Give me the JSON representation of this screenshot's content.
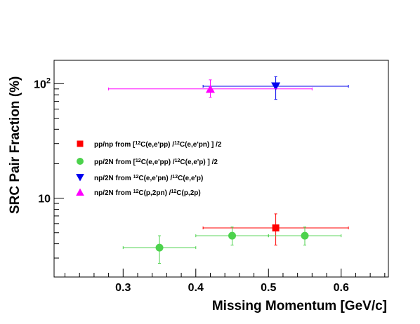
{
  "chart_data": {
    "type": "scatter",
    "xlabel": "Missing Momentum [GeV/c]",
    "ylabel": "SRC Pair Fraction (%)",
    "xlim": [
      0.205,
      0.665
    ],
    "ylim": [
      2.05,
      160
    ],
    "y_scale": "log",
    "grid": false,
    "x_ticks": [
      0.3,
      0.4,
      0.5,
      0.6
    ],
    "x_tick_labels": [
      "0.3",
      "0.4",
      "0.5",
      "0.6"
    ],
    "y_ticks": [
      10,
      100
    ],
    "y_tick_labels": [
      {
        "base": "10",
        "exp": ""
      },
      {
        "base": "10",
        "exp": "2"
      }
    ],
    "legend_position": "center-left",
    "series": [
      {
        "label_parts": [
          {
            "t": "pp/np from ["
          },
          {
            "t": "12",
            "sup": true
          },
          {
            "t": "C(e,e'pp) /"
          },
          {
            "t": "12",
            "sup": true
          },
          {
            "t": "C(e,e'pn) ] /2"
          }
        ],
        "marker": "square",
        "color": "#ff0000",
        "points": [
          {
            "x": 0.51,
            "y": 5.5,
            "xerr": [
              0.41,
              0.61
            ],
            "yerr": [
              3.9,
              7.3
            ]
          }
        ]
      },
      {
        "label_parts": [
          {
            "t": "pp/2N from ["
          },
          {
            "t": "12",
            "sup": true
          },
          {
            "t": "C(e,e'pp) /"
          },
          {
            "t": "12",
            "sup": true
          },
          {
            "t": "C(e,e'p) ] /2"
          }
        ],
        "marker": "circle",
        "color": "#4cd24c",
        "points": [
          {
            "x": 0.35,
            "y": 3.7,
            "xerr": [
              0.3,
              0.4
            ],
            "yerr": [
              2.7,
              4.7
            ]
          },
          {
            "x": 0.45,
            "y": 4.7,
            "xerr": [
              0.4,
              0.5
            ],
            "yerr": [
              3.9,
              5.6
            ]
          },
          {
            "x": 0.55,
            "y": 4.7,
            "xerr": [
              0.5,
              0.6
            ],
            "yerr": [
              3.9,
              5.6
            ]
          }
        ]
      },
      {
        "label_parts": [
          {
            "t": "np/2N from "
          },
          {
            "t": "12",
            "sup": true
          },
          {
            "t": "C(e,e'pn) /"
          },
          {
            "t": "12",
            "sup": true
          },
          {
            "t": "C(e,e'p)"
          }
        ],
        "marker": "triangle-down",
        "color": "#0000ee",
        "points": [
          {
            "x": 0.51,
            "y": 95,
            "xerr": [
              0.41,
              0.61
            ],
            "yerr": [
              73,
              115
            ]
          }
        ]
      },
      {
        "label_parts": [
          {
            "t": "np/2N from "
          },
          {
            "t": "12",
            "sup": true
          },
          {
            "t": "C(p,2pn) /"
          },
          {
            "t": "12",
            "sup": true
          },
          {
            "t": "C(p,2p)"
          }
        ],
        "marker": "triangle-up",
        "color": "#ff00ff",
        "points": [
          {
            "x": 0.42,
            "y": 90,
            "xerr": [
              0.28,
              0.56
            ],
            "yerr": [
              76,
              108
            ]
          }
        ]
      }
    ]
  }
}
